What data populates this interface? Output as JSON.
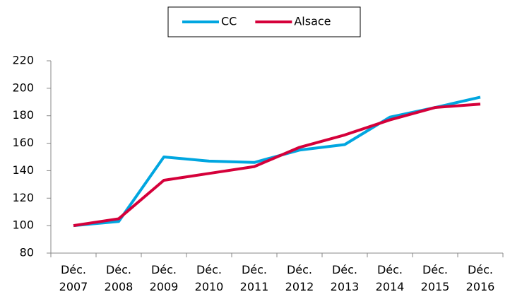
{
  "chart_data": {
    "type": "line",
    "categories": [
      "Déc. 2007",
      "Déc. 2008",
      "Déc. 2009",
      "Déc. 2010",
      "Déc. 2011",
      "Déc. 2012",
      "Déc. 2013",
      "Déc. 2014",
      "Déc. 2015",
      "Déc. 2016"
    ],
    "series": [
      {
        "name": "CC",
        "color": "#00a6e0",
        "values": [
          100,
          103,
          150,
          147,
          146,
          155,
          159,
          179,
          186,
          193.5
        ]
      },
      {
        "name": "Alsace",
        "color": "#d5003a",
        "values": [
          100,
          105,
          133,
          138,
          143,
          157,
          166,
          177,
          186,
          188.5
        ]
      }
    ],
    "ylim": [
      80,
      220
    ],
    "yticks": [
      80,
      100,
      120,
      140,
      160,
      180,
      200,
      220
    ],
    "grid": false,
    "legend": "top"
  }
}
